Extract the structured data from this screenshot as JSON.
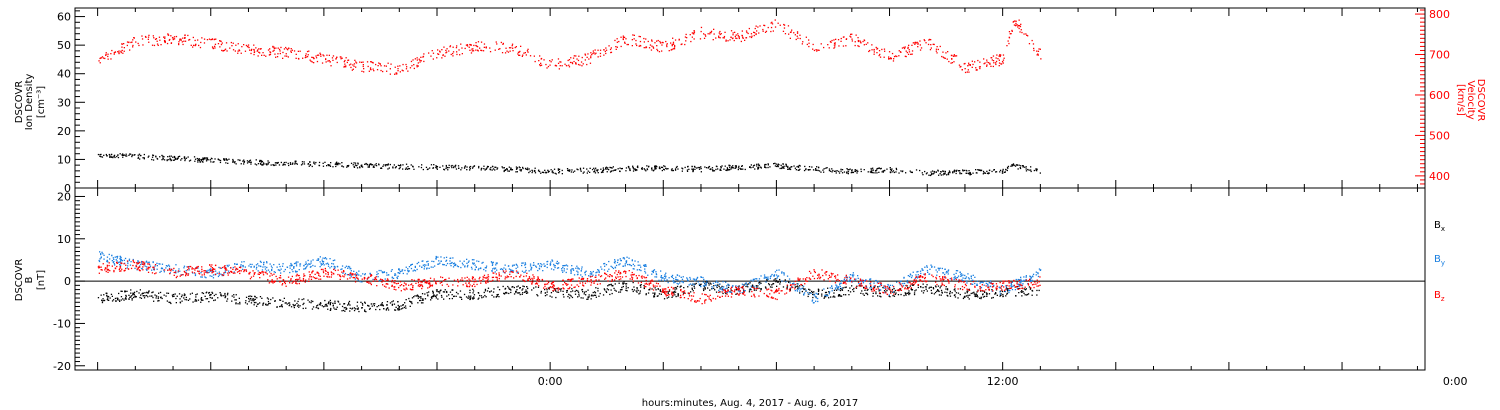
{
  "chart_data": [
    {
      "type": "scatter",
      "panel": "plasma",
      "ylabel_left": [
        "DSCOVR",
        "Ion Density",
        "[cm⁻³]"
      ],
      "ylabel_right": [
        "DSCOVR",
        "Velocity",
        "[km/s]"
      ],
      "ylim_left": [
        0,
        63
      ],
      "ylim_right": [
        370,
        815
      ],
      "yticks_left": [
        "0",
        "10",
        "20",
        "30",
        "40",
        "50",
        "60"
      ],
      "yticks_right": [
        "400",
        "500",
        "600",
        "700",
        "800"
      ],
      "right_axis_color": "#ff0000",
      "series": [
        {
          "axis": "left",
          "color": "#000000",
          "points": [
            [
              -12,
              12
            ],
            [
              -11,
              11.2
            ],
            [
              -10,
              10.6
            ],
            [
              -9,
              10
            ],
            [
              -8,
              9.3
            ],
            [
              -7,
              8.8
            ],
            [
              -6,
              8.6
            ],
            [
              -5,
              8
            ],
            [
              -4,
              7.7
            ],
            [
              -3,
              7.5
            ],
            [
              -2,
              7.2
            ],
            [
              -1,
              6.8
            ],
            [
              0,
              6
            ],
            [
              1,
              6.3
            ],
            [
              2,
              7
            ],
            [
              3,
              7.2
            ],
            [
              4,
              6.8
            ],
            [
              5,
              7.5
            ],
            [
              6,
              8
            ],
            [
              7,
              6.8
            ],
            [
              8,
              6
            ],
            [
              9,
              6.5
            ],
            [
              10,
              5.5
            ],
            [
              11,
              5.7
            ],
            [
              12,
              6.2
            ],
            [
              12.3,
              8
            ],
            [
              13,
              6
            ]
          ]
        },
        {
          "axis": "right",
          "color": "#ff0000",
          "points": [
            [
              -12,
              685
            ],
            [
              -11,
              735
            ],
            [
              -10,
              740
            ],
            [
              -9,
              728
            ],
            [
              -8,
              712
            ],
            [
              -7,
              705
            ],
            [
              -6,
              690
            ],
            [
              -5,
              672
            ],
            [
              -4,
              665
            ],
            [
              -3,
              705
            ],
            [
              -2,
              720
            ],
            [
              -1,
              718
            ],
            [
              0,
              675
            ],
            [
              1,
              690
            ],
            [
              2,
              740
            ],
            [
              3,
              720
            ],
            [
              4,
              755
            ],
            [
              5,
              745
            ],
            [
              6,
              775
            ],
            [
              7,
              720
            ],
            [
              8,
              740
            ],
            [
              9,
              695
            ],
            [
              10,
              730
            ],
            [
              11,
              670
            ],
            [
              12,
              690
            ],
            [
              12.3,
              790
            ],
            [
              13,
              700
            ]
          ]
        }
      ]
    },
    {
      "type": "scatter",
      "panel": "magnetic",
      "ylabel_left": [
        "DSCOVR",
        "B",
        "[nT]"
      ],
      "ylim": [
        -21,
        22
      ],
      "yticks": [
        "-20",
        "-10",
        "0",
        "10",
        "20"
      ],
      "series": [
        {
          "name": "Bx",
          "color": "#000000",
          "points": [
            [
              -12,
              -4
            ],
            [
              -11,
              -3
            ],
            [
              -10,
              -4
            ],
            [
              -9,
              -3.5
            ],
            [
              -8,
              -4.5
            ],
            [
              -7,
              -5
            ],
            [
              -6,
              -5.5
            ],
            [
              -5,
              -6
            ],
            [
              -4,
              -5.5
            ],
            [
              -3,
              -3
            ],
            [
              -2,
              -3
            ],
            [
              -1,
              -2
            ],
            [
              0,
              -2.5
            ],
            [
              1,
              -3
            ],
            [
              2,
              -1
            ],
            [
              3,
              -3
            ],
            [
              4,
              -1
            ],
            [
              5,
              -2
            ],
            [
              6,
              0
            ],
            [
              7,
              -3
            ],
            [
              8,
              -2
            ],
            [
              9,
              -2.5
            ],
            [
              10,
              -1.5
            ],
            [
              11,
              -3
            ],
            [
              12,
              -2.5
            ],
            [
              13,
              -2
            ]
          ]
        },
        {
          "name": "By",
          "color": "#1a7fe0",
          "points": [
            [
              -12,
              6
            ],
            [
              -11,
              4
            ],
            [
              -10,
              3
            ],
            [
              -9,
              2
            ],
            [
              -8,
              4
            ],
            [
              -7,
              3
            ],
            [
              -6,
              5
            ],
            [
              -5,
              1
            ],
            [
              -4,
              2
            ],
            [
              -3,
              5
            ],
            [
              -2,
              4
            ],
            [
              -1,
              3
            ],
            [
              0,
              4
            ],
            [
              1,
              2
            ],
            [
              2,
              5
            ],
            [
              3,
              1
            ],
            [
              4,
              0
            ],
            [
              5,
              -2
            ],
            [
              6,
              2
            ],
            [
              7,
              -4
            ],
            [
              8,
              1
            ],
            [
              9,
              -2
            ],
            [
              10,
              3
            ],
            [
              11,
              1
            ],
            [
              12,
              -2
            ],
            [
              13,
              2
            ]
          ]
        },
        {
          "name": "Bz",
          "color": "#ff0000",
          "points": [
            [
              -12,
              3
            ],
            [
              -11,
              4
            ],
            [
              -10,
              2
            ],
            [
              -9,
              3
            ],
            [
              -8,
              2
            ],
            [
              -7,
              0
            ],
            [
              -6,
              2
            ],
            [
              -5,
              1
            ],
            [
              -4,
              -1
            ],
            [
              -3,
              0
            ],
            [
              -2,
              0
            ],
            [
              -1,
              2
            ],
            [
              0,
              -1
            ],
            [
              1,
              0
            ],
            [
              2,
              2
            ],
            [
              3,
              -2
            ],
            [
              4,
              -4
            ],
            [
              5,
              -2
            ],
            [
              6,
              -3
            ],
            [
              7,
              2
            ],
            [
              8,
              0
            ],
            [
              9,
              -2
            ],
            [
              10,
              1
            ],
            [
              11,
              -1
            ],
            [
              12,
              -1
            ],
            [
              13,
              0
            ]
          ]
        }
      ]
    }
  ],
  "x_axis": {
    "xlabel": "hours:minutes, Aug.  4, 2017 - Aug.  6, 2017",
    "xlim_hours": [
      -12.6,
      23.2
    ],
    "tick_labels": [
      {
        "hour": 0,
        "label": "0:00"
      },
      {
        "hour": 12,
        "label": "12:00"
      },
      {
        "hour": 24,
        "label": "0:00"
      }
    ]
  },
  "legend": {
    "placement": "right",
    "items": [
      {
        "label": "B",
        "sub": "x",
        "color": "#000000"
      },
      {
        "label": "B",
        "sub": "y",
        "color": "#1a7fe0"
      },
      {
        "label": "B",
        "sub": "z",
        "color": "#ff0000"
      }
    ]
  }
}
